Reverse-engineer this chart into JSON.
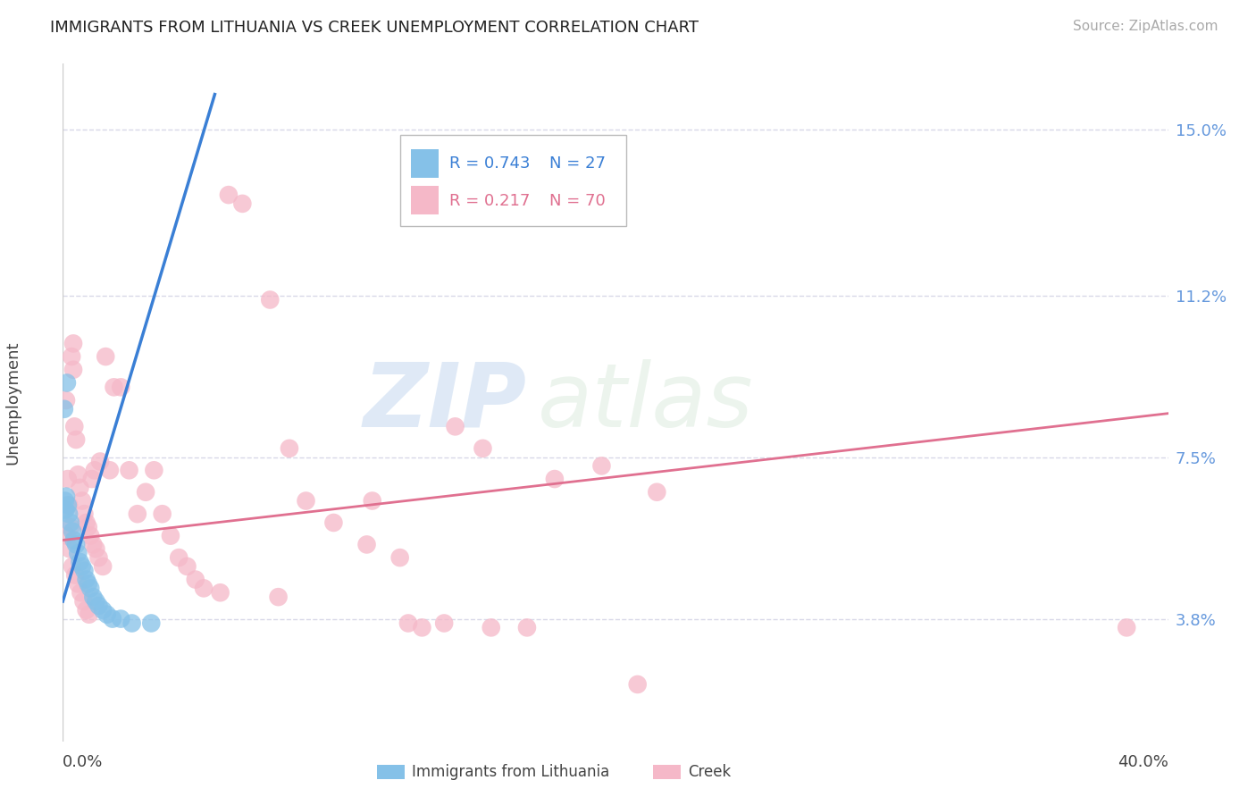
{
  "title": "IMMIGRANTS FROM LITHUANIA VS CREEK UNEMPLOYMENT CORRELATION CHART",
  "source": "Source: ZipAtlas.com",
  "ylabel": "Unemployment",
  "ytick_labels": [
    "3.8%",
    "7.5%",
    "11.2%",
    "15.0%"
  ],
  "ytick_values": [
    3.8,
    7.5,
    11.2,
    15.0
  ],
  "xmin": 0.0,
  "xmax": 40.0,
  "ymin": 1.0,
  "ymax": 16.5,
  "legend_blue_r": "R = 0.743",
  "legend_blue_n": "N = 27",
  "legend_pink_r": "R = 0.217",
  "legend_pink_n": "N = 70",
  "blue_color": "#85c1e8",
  "pink_color": "#f5b8c8",
  "blue_line_color": "#3a7fd5",
  "pink_line_color": "#e07090",
  "watermark_zip": "ZIP",
  "watermark_atlas": "atlas",
  "blue_scatter": [
    [
      0.15,
      9.2
    ],
    [
      0.05,
      8.6
    ],
    [
      0.12,
      6.6
    ],
    [
      0.18,
      6.4
    ],
    [
      0.22,
      6.2
    ],
    [
      0.28,
      6.0
    ],
    [
      0.35,
      5.8
    ],
    [
      0.4,
      5.6
    ],
    [
      0.48,
      5.5
    ],
    [
      0.55,
      5.3
    ],
    [
      0.62,
      5.1
    ],
    [
      0.7,
      5.0
    ],
    [
      0.78,
      4.9
    ],
    [
      0.85,
      4.7
    ],
    [
      0.92,
      4.6
    ],
    [
      1.0,
      4.5
    ],
    [
      1.1,
      4.3
    ],
    [
      1.2,
      4.2
    ],
    [
      1.3,
      4.1
    ],
    [
      1.45,
      4.0
    ],
    [
      1.6,
      3.9
    ],
    [
      1.8,
      3.8
    ],
    [
      2.1,
      3.8
    ],
    [
      2.5,
      3.7
    ],
    [
      3.2,
      3.7
    ],
    [
      0.08,
      6.5
    ],
    [
      0.1,
      6.3
    ]
  ],
  "pink_scatter": [
    [
      0.08,
      6.3
    ],
    [
      0.12,
      8.8
    ],
    [
      0.18,
      7.0
    ],
    [
      0.22,
      6.4
    ],
    [
      0.28,
      5.9
    ],
    [
      0.32,
      9.8
    ],
    [
      0.38,
      10.1
    ],
    [
      0.42,
      8.2
    ],
    [
      0.48,
      7.9
    ],
    [
      0.55,
      7.1
    ],
    [
      0.62,
      6.8
    ],
    [
      0.7,
      6.5
    ],
    [
      0.78,
      6.2
    ],
    [
      0.85,
      6.0
    ],
    [
      0.92,
      5.9
    ],
    [
      1.0,
      5.7
    ],
    [
      1.1,
      5.5
    ],
    [
      1.2,
      5.4
    ],
    [
      1.3,
      5.2
    ],
    [
      1.45,
      5.0
    ],
    [
      1.55,
      9.8
    ],
    [
      1.7,
      7.2
    ],
    [
      1.85,
      9.1
    ],
    [
      2.1,
      9.1
    ],
    [
      2.4,
      7.2
    ],
    [
      2.7,
      6.2
    ],
    [
      3.0,
      6.7
    ],
    [
      3.3,
      7.2
    ],
    [
      3.6,
      6.2
    ],
    [
      3.9,
      5.7
    ],
    [
      4.2,
      5.2
    ],
    [
      4.5,
      5.0
    ],
    [
      4.8,
      4.7
    ],
    [
      5.1,
      4.5
    ],
    [
      5.7,
      4.4
    ],
    [
      6.0,
      13.5
    ],
    [
      6.5,
      13.3
    ],
    [
      7.5,
      11.1
    ],
    [
      8.2,
      7.7
    ],
    [
      8.8,
      6.5
    ],
    [
      9.8,
      6.0
    ],
    [
      11.0,
      5.5
    ],
    [
      12.2,
      5.2
    ],
    [
      13.8,
      3.7
    ],
    [
      15.5,
      3.6
    ],
    [
      16.8,
      3.6
    ],
    [
      17.8,
      7.0
    ],
    [
      19.5,
      7.3
    ],
    [
      20.8,
      2.3
    ],
    [
      21.5,
      6.7
    ],
    [
      0.15,
      5.7
    ],
    [
      0.25,
      5.4
    ],
    [
      0.35,
      5.0
    ],
    [
      0.45,
      4.8
    ],
    [
      0.55,
      4.6
    ],
    [
      0.65,
      4.4
    ],
    [
      0.75,
      4.2
    ],
    [
      0.85,
      4.0
    ],
    [
      0.95,
      3.9
    ],
    [
      1.05,
      7.0
    ],
    [
      1.15,
      7.2
    ],
    [
      1.35,
      7.4
    ],
    [
      13.0,
      3.6
    ],
    [
      15.2,
      7.7
    ],
    [
      12.5,
      3.7
    ],
    [
      14.2,
      8.2
    ],
    [
      11.2,
      6.5
    ],
    [
      7.8,
      4.3
    ],
    [
      38.5,
      3.6
    ],
    [
      0.38,
      9.5
    ]
  ],
  "blue_trendline_x": [
    0.0,
    5.5
  ],
  "blue_trendline_y": [
    4.2,
    15.8
  ],
  "pink_trendline_x": [
    0.0,
    40.0
  ],
  "pink_trendline_y": [
    5.6,
    8.5
  ]
}
